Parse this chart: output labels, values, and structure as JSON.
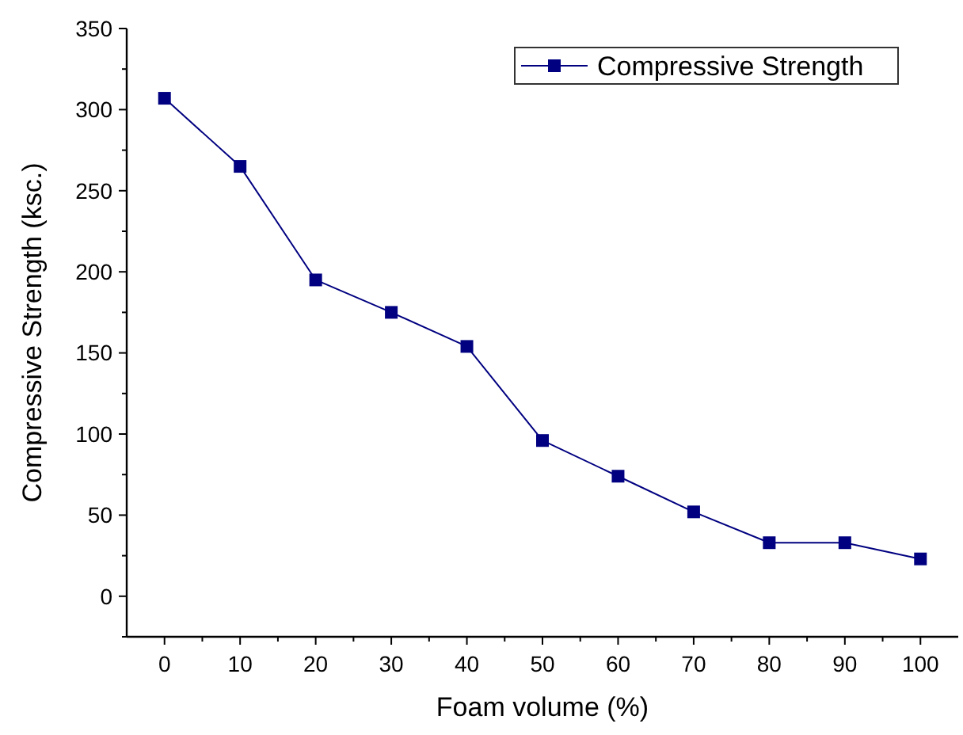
{
  "chart_data": {
    "type": "line",
    "xlabel": "Foam volume (%)",
    "ylabel": "Compressive Strength (ksc.)",
    "x": [
      0,
      10,
      20,
      30,
      40,
      50,
      60,
      70,
      80,
      90,
      100
    ],
    "series": [
      {
        "name": "Compressive Strength",
        "color": "#000080",
        "values": [
          307,
          265,
          195,
          175,
          154,
          96,
          74,
          52,
          33,
          33,
          23
        ]
      }
    ],
    "xlim": [
      -5,
      105
    ],
    "xticks": [
      0,
      {
        "value": 5,
        "label": null
      },
      10,
      {
        "value": 15,
        "label": null
      },
      20,
      {
        "value": 25,
        "label": null
      },
      30,
      {
        "value": 35,
        "label": null
      },
      40,
      {
        "value": 45,
        "label": null
      },
      50,
      {
        "value": 55,
        "label": null
      },
      60,
      {
        "value": 65,
        "label": null
      },
      70,
      {
        "value": 75,
        "label": null
      },
      80,
      {
        "value": 85,
        "label": null
      },
      90,
      {
        "value": 95,
        "label": null
      },
      100
    ],
    "ylim": [
      -25,
      350
    ],
    "yticks": [
      {
        "value": -25,
        "label": null
      },
      0,
      {
        "value": 25,
        "label": null
      },
      50,
      {
        "value": 75,
        "label": null
      },
      100,
      {
        "value": 125,
        "label": null
      },
      150,
      {
        "value": 175,
        "label": null
      },
      200,
      {
        "value": 225,
        "label": null
      },
      250,
      {
        "value": 275,
        "label": null
      },
      300,
      {
        "value": 325,
        "label": null
      },
      350
    ],
    "marker": "square",
    "line_style": "solid",
    "legend": "top right",
    "grid": false
  }
}
